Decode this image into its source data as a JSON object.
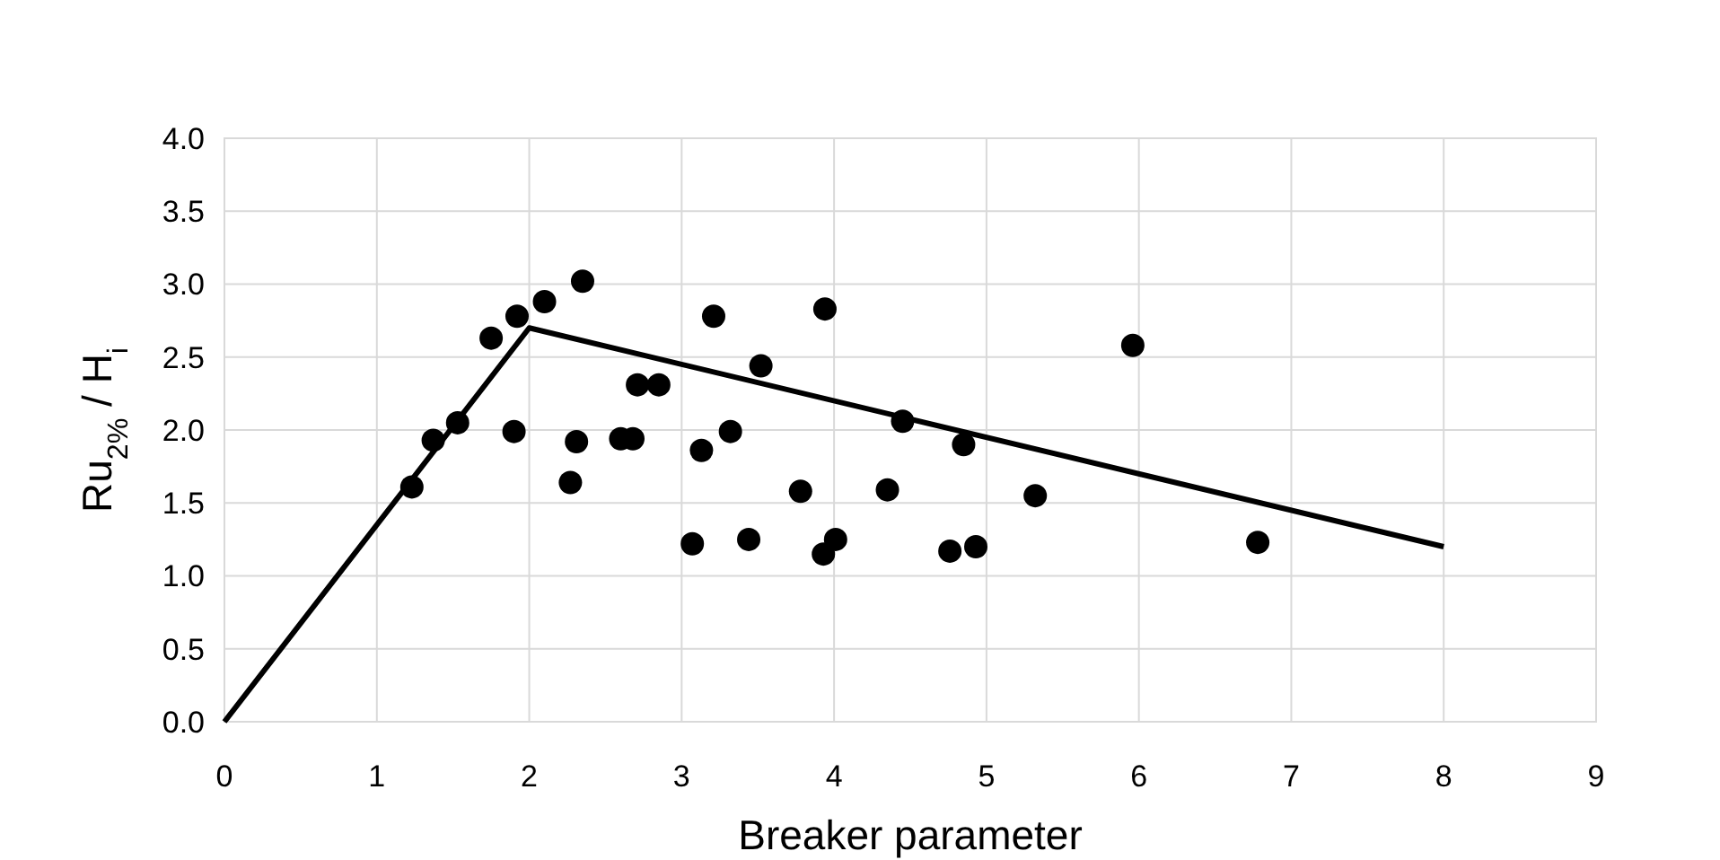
{
  "chart_data": {
    "type": "scatter",
    "xlabel": "Breaker parameter",
    "ylabel": "Ru$_{2%}$ / H$_{i}$",
    "xlim": [
      0,
      9
    ],
    "xticks": [
      0,
      1,
      2,
      3,
      4,
      5,
      6,
      7,
      8,
      9
    ],
    "ylim": [
      0,
      4
    ],
    "yticks": [
      {
        "value": 0,
        "label": "0.0"
      },
      {
        "value": 0.5,
        "label": "0.5"
      },
      {
        "value": 1,
        "label": "1.0"
      },
      {
        "value": 1.5,
        "label": "1.5"
      },
      {
        "value": 2,
        "label": "2.0"
      },
      {
        "value": 2.5,
        "label": "2.5"
      },
      {
        "value": 3,
        "label": "3.0"
      },
      {
        "value": 3.5,
        "label": "3.5"
      },
      {
        "value": 4,
        "label": "4.0"
      }
    ],
    "grid": true,
    "marker": "circle",
    "series": [
      {
        "color": "#000000",
        "x": [
          1.23,
          1.37,
          1.53,
          1.75,
          1.92,
          1.9,
          2.1,
          2.35,
          2.27,
          2.31,
          2.6,
          2.68,
          2.71,
          2.85,
          3.07,
          3.13,
          3.21,
          3.32,
          3.44,
          3.52,
          3.78,
          3.94,
          3.93,
          4.01,
          4.45,
          4.85,
          4.35,
          5.32,
          4.76,
          4.93,
          5.96,
          6.78
        ],
        "values": [
          1.61,
          1.93,
          2.05,
          2.63,
          2.78,
          1.99,
          2.88,
          3.02,
          1.64,
          1.92,
          1.94,
          1.94,
          2.31,
          2.31,
          1.22,
          1.86,
          2.78,
          1.99,
          1.25,
          2.44,
          1.58,
          2.83,
          1.15,
          1.25,
          2.06,
          1.9,
          1.59,
          1.55,
          1.17,
          1.2,
          2.58,
          1.23
        ]
      },
      {
        "type": "line",
        "color": "#000000",
        "marker": "none",
        "line_style": "solid",
        "x": [
          0,
          2,
          8
        ],
        "values": [
          0,
          2.7,
          1.2
        ]
      }
    ]
  }
}
